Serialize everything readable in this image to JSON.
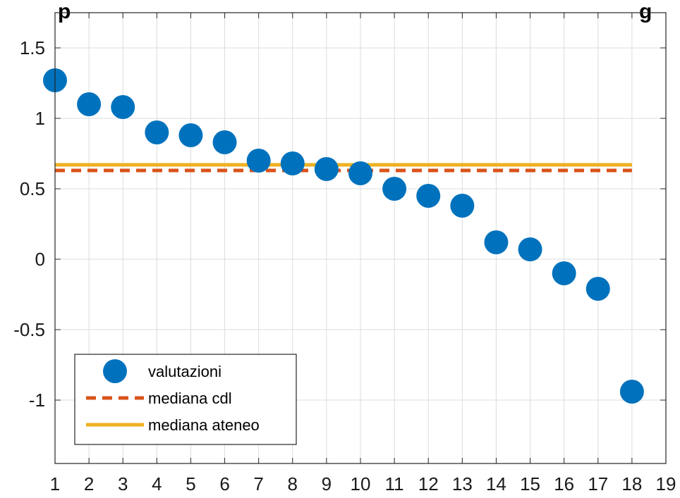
{
  "chart_data": {
    "type": "scatter",
    "title": "",
    "title_visible_fragment": "p",
    "title_visible_fragment_right": "g",
    "xlabel": "",
    "ylabel": "",
    "xlim": [
      1,
      19
    ],
    "ylim": [
      -1.45,
      1.75
    ],
    "xticks": [
      1,
      2,
      3,
      4,
      5,
      6,
      7,
      8,
      9,
      10,
      11,
      12,
      13,
      14,
      15,
      16,
      17,
      18,
      19
    ],
    "xtick_labels": [
      "1",
      "2",
      "3",
      "4",
      "5",
      "6",
      "7",
      "8",
      "9",
      "10",
      "11",
      "12",
      "13",
      "14",
      "15",
      "16",
      "17",
      "18",
      "19"
    ],
    "yticks": [
      -1,
      -0.5,
      0,
      0.5,
      1,
      1.5
    ],
    "ytick_labels": [
      "-1",
      "-0.5",
      "0",
      "0.5",
      "1",
      "1.5"
    ],
    "grid": true,
    "legend_position": "bottom-left",
    "series": [
      {
        "name": "valutazioni",
        "kind": "scatter",
        "color": "#0072BD",
        "x": [
          1,
          2,
          3,
          4,
          5,
          6,
          7,
          8,
          9,
          10,
          11,
          12,
          13,
          14,
          15,
          16,
          17,
          18
        ],
        "y": [
          1.27,
          1.1,
          1.08,
          0.9,
          0.88,
          0.83,
          0.7,
          0.68,
          0.64,
          0.61,
          0.5,
          0.45,
          0.38,
          0.12,
          0.07,
          -0.1,
          -0.21,
          -0.94
        ]
      },
      {
        "name": "mediana cdl",
        "kind": "hline",
        "color": "#D95319",
        "dash": true,
        "x": [
          1,
          18
        ],
        "y": 0.63
      },
      {
        "name": "mediana ateneo",
        "kind": "hline",
        "color": "#EDB120",
        "dash": false,
        "x": [
          1,
          18
        ],
        "y": 0.67
      }
    ]
  }
}
